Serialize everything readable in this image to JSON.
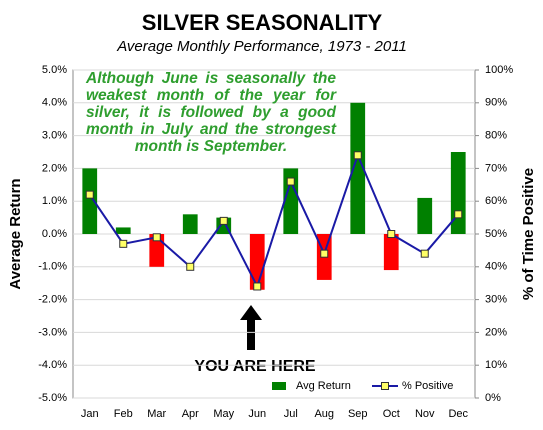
{
  "chart_data": {
    "type": "bar",
    "title": "SILVER SEASONALITY",
    "subtitle": "Average Monthly Performance, 1973 - 2011",
    "y_label": "Average Return",
    "y2_label": "% of Time Positive",
    "categories": [
      "Jan",
      "Feb",
      "Mar",
      "Apr",
      "May",
      "Jun",
      "Jul",
      "Aug",
      "Sep",
      "Oct",
      "Nov",
      "Dec"
    ],
    "series": [
      {
        "name": "Avg Return",
        "type": "bar",
        "color": "#008000",
        "negative_color": "#ff0000",
        "values": [
          2.0,
          0.2,
          -1.0,
          0.6,
          0.5,
          -1.7,
          2.0,
          -1.4,
          4.0,
          -1.1,
          1.1,
          2.5
        ]
      },
      {
        "name": "% Positive",
        "type": "line",
        "axis": "y2",
        "color": "#1a1aa6",
        "marker_color": "#ffff66",
        "values": [
          62,
          47,
          49,
          40,
          54,
          34,
          66,
          44,
          74,
          50,
          44,
          56
        ]
      }
    ],
    "ylim": [
      -5,
      5
    ],
    "yticks": [
      {
        "value": -5,
        "label": "-5.0%"
      },
      {
        "value": -4,
        "label": "-4.0%"
      },
      {
        "value": -3,
        "label": "-3.0%"
      },
      {
        "value": -2,
        "label": "-2.0%"
      },
      {
        "value": -1,
        "label": "-1.0%"
      },
      {
        "value": 0,
        "label": "0.0%"
      },
      {
        "value": 1,
        "label": "1.0%"
      },
      {
        "value": 2,
        "label": "2.0%"
      },
      {
        "value": 3,
        "label": "3.0%"
      },
      {
        "value": 4,
        "label": "4.0%"
      },
      {
        "value": 5,
        "label": "5.0%"
      }
    ],
    "y2lim": [
      0,
      100
    ],
    "y2ticks": [
      {
        "value": 0,
        "label": "0%"
      },
      {
        "value": 10,
        "label": "10%"
      },
      {
        "value": 20,
        "label": "20%"
      },
      {
        "value": 30,
        "label": "30%"
      },
      {
        "value": 40,
        "label": "40%"
      },
      {
        "value": 50,
        "label": "50%"
      },
      {
        "value": 60,
        "label": "60%"
      },
      {
        "value": 70,
        "label": "70%"
      },
      {
        "value": 80,
        "label": "80%"
      },
      {
        "value": 90,
        "label": "90%"
      },
      {
        "value": 100,
        "label": "100%"
      }
    ],
    "grid": true,
    "legend": "lower right",
    "annotations": [
      {
        "text": "Although June is seasonally the weakest month of the year for silver, it is followed by a good month in July and the strongest month is September.",
        "color": "#2e9e2e"
      },
      {
        "text": "YOU ARE HERE",
        "color": "#000000"
      }
    ]
  }
}
